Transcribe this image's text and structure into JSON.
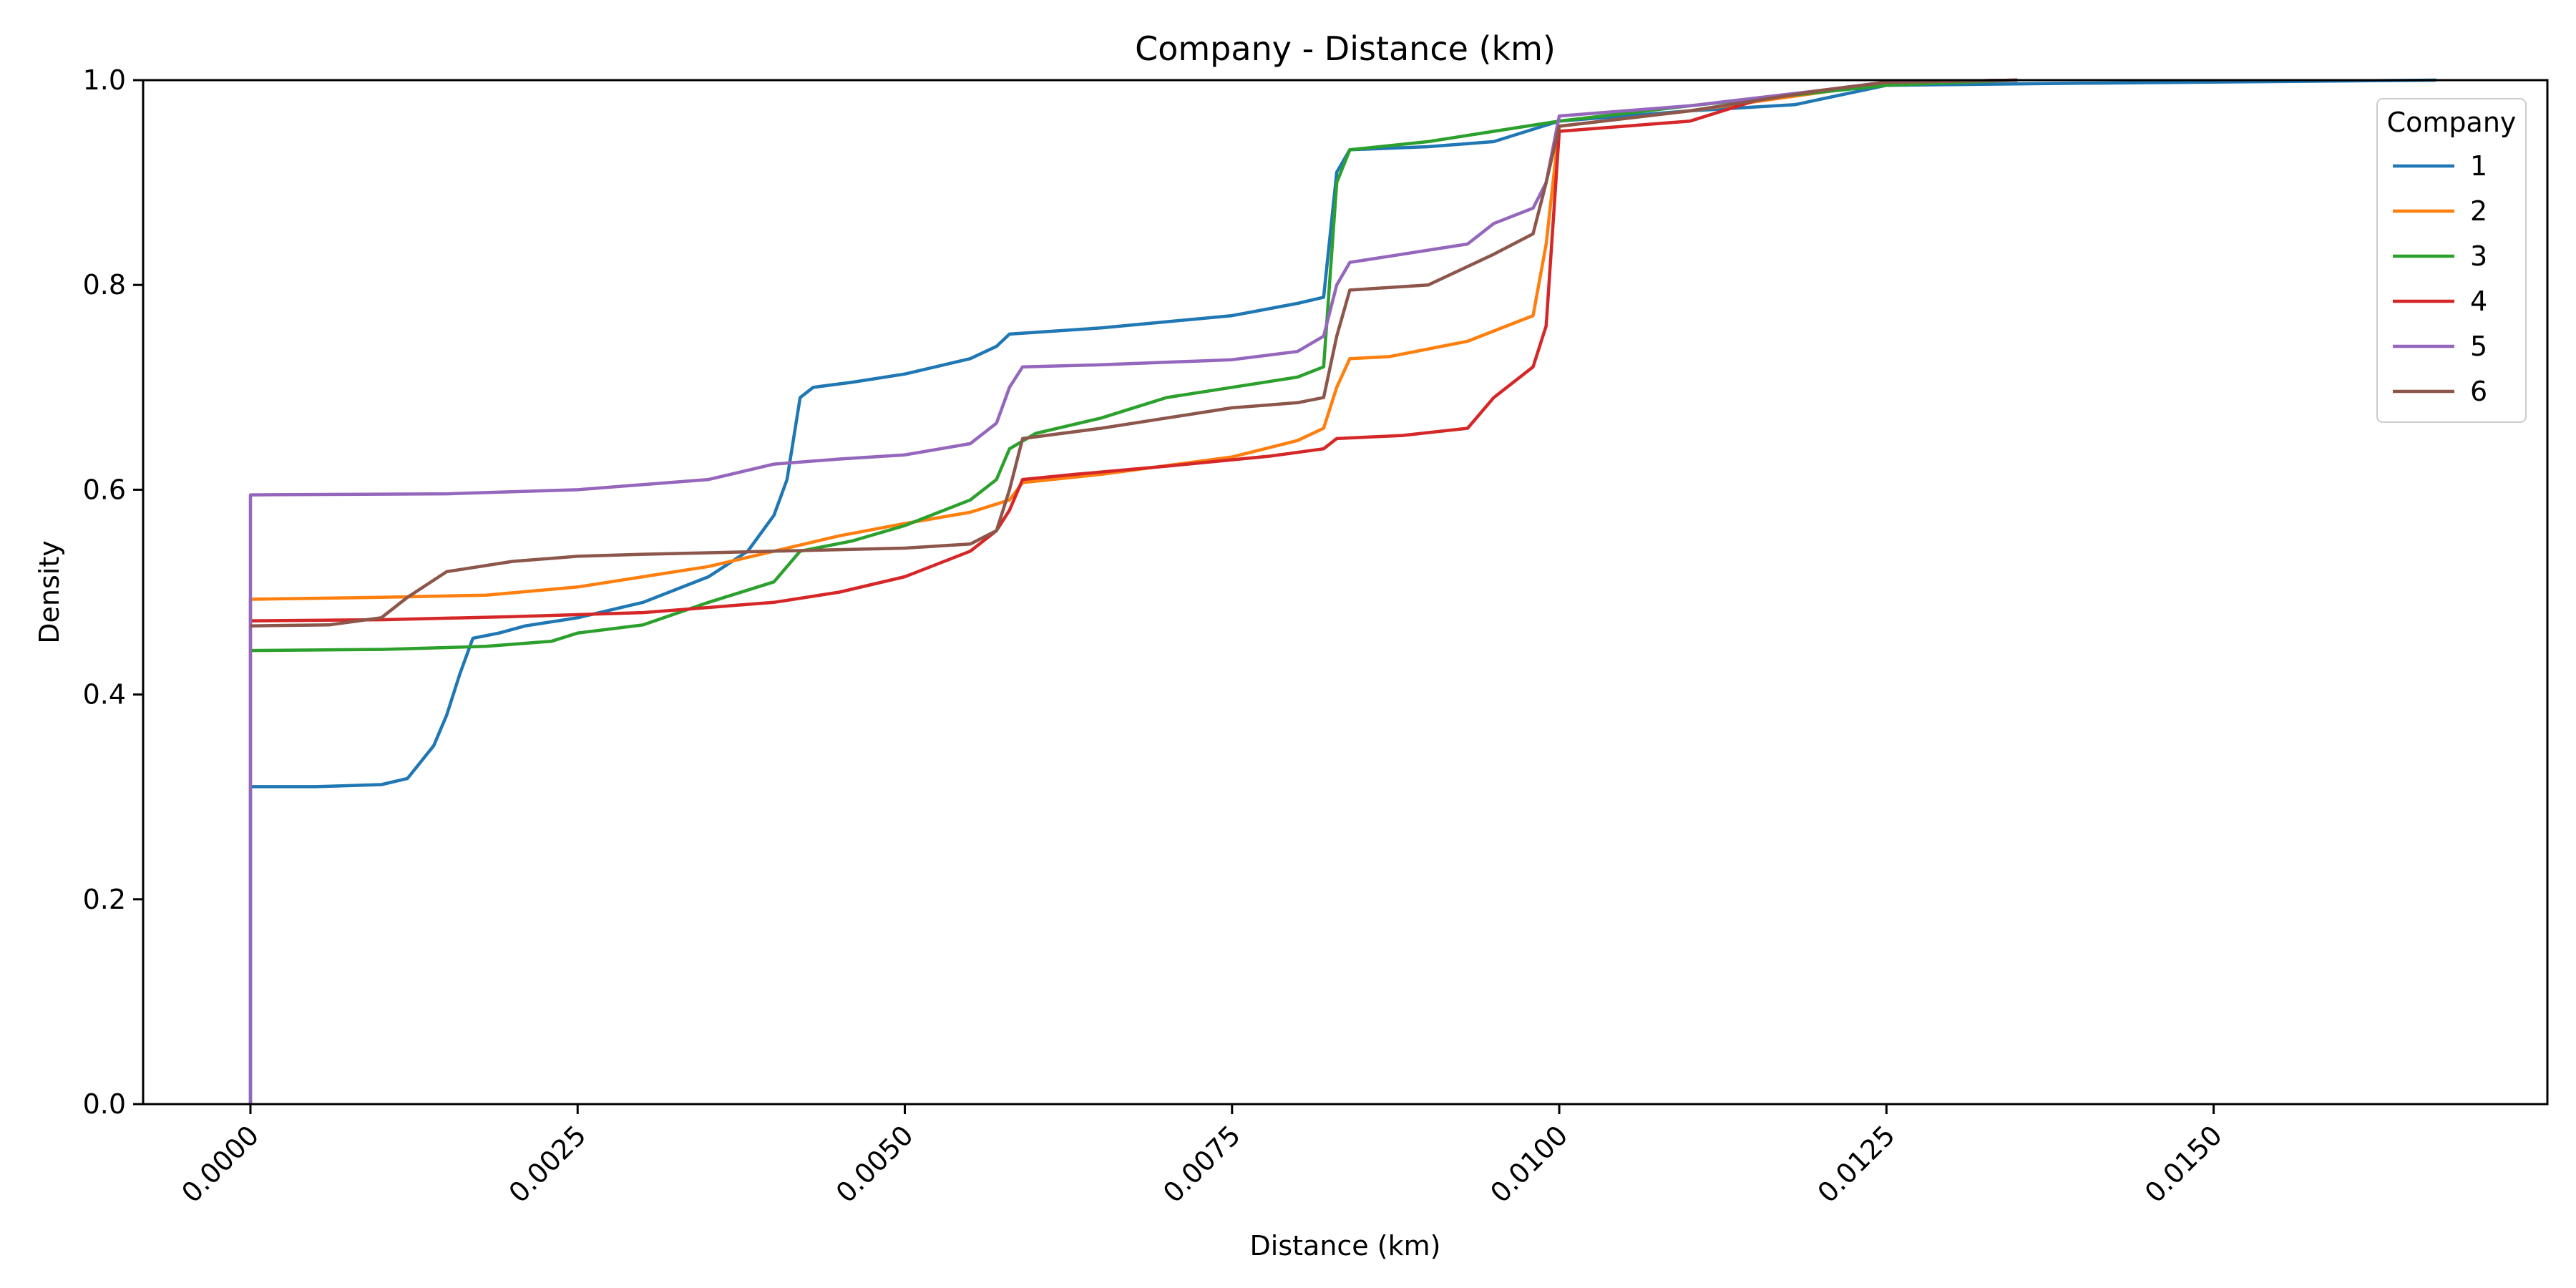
{
  "chart_data": {
    "type": "line",
    "title": "Company - Distance (km)",
    "xlabel": "Distance (km)",
    "ylabel": "Density",
    "xlim": [
      -0.00082,
      0.01755
    ],
    "ylim": [
      0.0,
      1.0
    ],
    "x_ticks": [
      0.0,
      0.0025,
      0.005,
      0.0075,
      0.01,
      0.0125,
      0.015
    ],
    "x_tick_labels": [
      "0.0000",
      "0.0025",
      "0.0050",
      "0.0075",
      "0.0100",
      "0.0125",
      "0.0150"
    ],
    "y_ticks": [
      0.0,
      0.2,
      0.4,
      0.6,
      0.8,
      1.0
    ],
    "y_tick_labels": [
      "0.0",
      "0.2",
      "0.4",
      "0.6",
      "0.8",
      "1.0"
    ],
    "grid": false,
    "legend": {
      "title": "Company",
      "placement": "top-right"
    },
    "series": [
      {
        "name": "1",
        "color": "#1f77b4",
        "points": [
          [
            0.0,
            0.0
          ],
          [
            0.0,
            0.31
          ],
          [
            0.0005,
            0.31
          ],
          [
            0.001,
            0.312
          ],
          [
            0.0012,
            0.318
          ],
          [
            0.0014,
            0.35
          ],
          [
            0.0015,
            0.38
          ],
          [
            0.0016,
            0.42
          ],
          [
            0.0017,
            0.455
          ],
          [
            0.0019,
            0.46
          ],
          [
            0.0021,
            0.467
          ],
          [
            0.0025,
            0.475
          ],
          [
            0.003,
            0.49
          ],
          [
            0.0035,
            0.515
          ],
          [
            0.0038,
            0.54
          ],
          [
            0.004,
            0.575
          ],
          [
            0.0041,
            0.61
          ],
          [
            0.0042,
            0.69
          ],
          [
            0.0043,
            0.7
          ],
          [
            0.0046,
            0.705
          ],
          [
            0.005,
            0.713
          ],
          [
            0.0055,
            0.728
          ],
          [
            0.0057,
            0.74
          ],
          [
            0.0058,
            0.752
          ],
          [
            0.0065,
            0.758
          ],
          [
            0.0075,
            0.77
          ],
          [
            0.008,
            0.782
          ],
          [
            0.0082,
            0.788
          ],
          [
            0.0083,
            0.91
          ],
          [
            0.0084,
            0.932
          ],
          [
            0.009,
            0.935
          ],
          [
            0.0095,
            0.94
          ],
          [
            0.01,
            0.96
          ],
          [
            0.011,
            0.97
          ],
          [
            0.0118,
            0.976
          ],
          [
            0.0125,
            0.995
          ],
          [
            0.014,
            0.997
          ],
          [
            0.0167,
            1.0
          ]
        ]
      },
      {
        "name": "2",
        "color": "#ff7f0e",
        "points": [
          [
            0.0,
            0.31
          ],
          [
            0.0,
            0.493
          ],
          [
            0.001,
            0.495
          ],
          [
            0.0018,
            0.497
          ],
          [
            0.0025,
            0.505
          ],
          [
            0.003,
            0.515
          ],
          [
            0.0035,
            0.525
          ],
          [
            0.004,
            0.54
          ],
          [
            0.0045,
            0.555
          ],
          [
            0.005,
            0.567
          ],
          [
            0.0055,
            0.578
          ],
          [
            0.0058,
            0.59
          ],
          [
            0.0059,
            0.607
          ],
          [
            0.0065,
            0.615
          ],
          [
            0.0075,
            0.632
          ],
          [
            0.008,
            0.648
          ],
          [
            0.0082,
            0.66
          ],
          [
            0.0083,
            0.7
          ],
          [
            0.0084,
            0.728
          ],
          [
            0.0087,
            0.73
          ],
          [
            0.0093,
            0.745
          ],
          [
            0.0098,
            0.77
          ],
          [
            0.0099,
            0.84
          ],
          [
            0.01,
            0.955
          ],
          [
            0.011,
            0.97
          ],
          [
            0.0125,
            0.997
          ],
          [
            0.0135,
            1.0
          ]
        ]
      },
      {
        "name": "3",
        "color": "#2ca02c",
        "points": [
          [
            0.0,
            0.443
          ],
          [
            0.001,
            0.444
          ],
          [
            0.0018,
            0.447
          ],
          [
            0.0023,
            0.452
          ],
          [
            0.0025,
            0.46
          ],
          [
            0.003,
            0.468
          ],
          [
            0.0035,
            0.49
          ],
          [
            0.004,
            0.51
          ],
          [
            0.0041,
            0.525
          ],
          [
            0.0042,
            0.54
          ],
          [
            0.0046,
            0.55
          ],
          [
            0.005,
            0.565
          ],
          [
            0.0055,
            0.59
          ],
          [
            0.0057,
            0.61
          ],
          [
            0.0058,
            0.64
          ],
          [
            0.006,
            0.655
          ],
          [
            0.0065,
            0.67
          ],
          [
            0.007,
            0.69
          ],
          [
            0.0075,
            0.7
          ],
          [
            0.008,
            0.71
          ],
          [
            0.0082,
            0.72
          ],
          [
            0.0083,
            0.9
          ],
          [
            0.0084,
            0.932
          ],
          [
            0.009,
            0.94
          ],
          [
            0.0095,
            0.95
          ],
          [
            0.01,
            0.96
          ],
          [
            0.011,
            0.975
          ],
          [
            0.0125,
            0.995
          ],
          [
            0.0135,
            1.0
          ]
        ]
      },
      {
        "name": "4",
        "color": "#d62728",
        "points": [
          [
            0.0,
            0.472
          ],
          [
            0.001,
            0.473
          ],
          [
            0.002,
            0.476
          ],
          [
            0.003,
            0.48
          ],
          [
            0.004,
            0.49
          ],
          [
            0.0045,
            0.5
          ],
          [
            0.005,
            0.515
          ],
          [
            0.0055,
            0.54
          ],
          [
            0.0057,
            0.56
          ],
          [
            0.0058,
            0.58
          ],
          [
            0.0059,
            0.61
          ],
          [
            0.0063,
            0.615
          ],
          [
            0.007,
            0.623
          ],
          [
            0.0078,
            0.633
          ],
          [
            0.0082,
            0.64
          ],
          [
            0.0083,
            0.65
          ],
          [
            0.0088,
            0.653
          ],
          [
            0.0093,
            0.66
          ],
          [
            0.0095,
            0.69
          ],
          [
            0.0098,
            0.72
          ],
          [
            0.0099,
            0.76
          ],
          [
            0.01,
            0.95
          ],
          [
            0.0105,
            0.955
          ],
          [
            0.011,
            0.96
          ],
          [
            0.0115,
            0.98
          ],
          [
            0.012,
            0.99
          ],
          [
            0.0125,
            0.998
          ],
          [
            0.0135,
            1.0
          ]
        ]
      },
      {
        "name": "5",
        "color": "#9467bd",
        "points": [
          [
            0.0,
            0.0
          ],
          [
            0.0,
            0.595
          ],
          [
            0.0015,
            0.596
          ],
          [
            0.0025,
            0.6
          ],
          [
            0.003,
            0.605
          ],
          [
            0.0035,
            0.61
          ],
          [
            0.004,
            0.625
          ],
          [
            0.0045,
            0.63
          ],
          [
            0.005,
            0.634
          ],
          [
            0.0055,
            0.645
          ],
          [
            0.0057,
            0.665
          ],
          [
            0.0058,
            0.7
          ],
          [
            0.0059,
            0.72
          ],
          [
            0.0065,
            0.722
          ],
          [
            0.0075,
            0.727
          ],
          [
            0.008,
            0.735
          ],
          [
            0.0082,
            0.75
          ],
          [
            0.0083,
            0.8
          ],
          [
            0.0084,
            0.822
          ],
          [
            0.0088,
            0.83
          ],
          [
            0.0093,
            0.84
          ],
          [
            0.0095,
            0.86
          ],
          [
            0.0098,
            0.875
          ],
          [
            0.0099,
            0.9
          ],
          [
            0.01,
            0.965
          ],
          [
            0.011,
            0.975
          ],
          [
            0.012,
            0.99
          ],
          [
            0.0125,
            0.998
          ],
          [
            0.0135,
            1.0
          ]
        ]
      },
      {
        "name": "6",
        "color": "#8c564b",
        "points": [
          [
            0.0,
            0.467
          ],
          [
            0.0006,
            0.468
          ],
          [
            0.001,
            0.475
          ],
          [
            0.0012,
            0.495
          ],
          [
            0.0015,
            0.52
          ],
          [
            0.002,
            0.53
          ],
          [
            0.0025,
            0.535
          ],
          [
            0.003,
            0.537
          ],
          [
            0.004,
            0.54
          ],
          [
            0.005,
            0.543
          ],
          [
            0.0055,
            0.547
          ],
          [
            0.0057,
            0.56
          ],
          [
            0.0058,
            0.6
          ],
          [
            0.0059,
            0.65
          ],
          [
            0.0065,
            0.66
          ],
          [
            0.007,
            0.67
          ],
          [
            0.0075,
            0.68
          ],
          [
            0.008,
            0.685
          ],
          [
            0.0082,
            0.69
          ],
          [
            0.0083,
            0.75
          ],
          [
            0.0084,
            0.795
          ],
          [
            0.009,
            0.8
          ],
          [
            0.0095,
            0.83
          ],
          [
            0.0098,
            0.85
          ],
          [
            0.0099,
            0.9
          ],
          [
            0.01,
            0.955
          ],
          [
            0.011,
            0.97
          ],
          [
            0.012,
            0.99
          ],
          [
            0.0125,
            0.998
          ],
          [
            0.0135,
            1.0
          ]
        ]
      }
    ]
  }
}
